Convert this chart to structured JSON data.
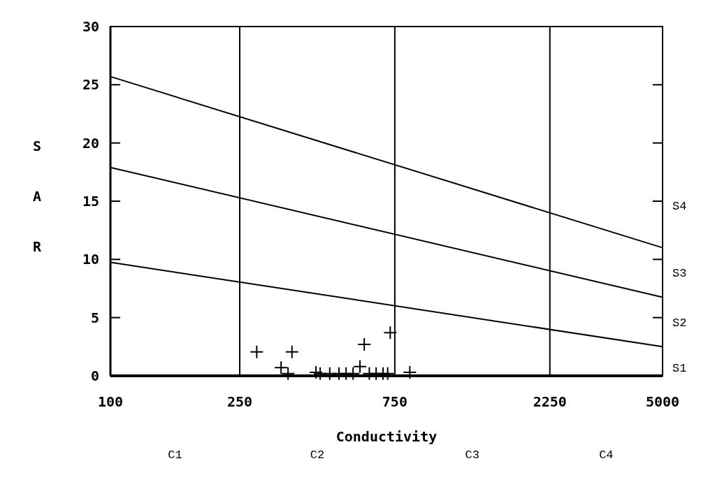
{
  "chart_data": {
    "type": "scatter",
    "xlabel": "Conductivity",
    "ylabel": "SAR",
    "log": "x",
    "xlim": [
      100,
      5000
    ],
    "xticks": [
      100,
      250,
      750,
      2250,
      5000
    ],
    "ylim": [
      0,
      30
    ],
    "yticks": [
      0,
      5,
      10,
      15,
      20,
      25,
      30
    ],
    "grid": false,
    "series": [
      {
        "type": "scatter",
        "marker": "cross",
        "color": "#000000",
        "x": [
          282,
          362,
          604,
          726,
          335,
          834,
          586,
          352,
          442,
          473,
          505,
          531,
          558,
          626,
          657,
          690,
          713,
          429
        ],
        "values": [
          2.05,
          2.05,
          2.7,
          3.7,
          0.7,
          0.3,
          0.8,
          0.2,
          0.2,
          0.2,
          0.2,
          0.2,
          0.2,
          0.2,
          0.2,
          0.2,
          0.2,
          0.3
        ]
      },
      {
        "type": "line",
        "marker": "none",
        "color": "#000000",
        "x": [
          100,
          5000
        ],
        "values": [
          25.7,
          11.0
        ]
      },
      {
        "type": "line",
        "marker": "none",
        "color": "#000000",
        "x": [
          100,
          5000
        ],
        "values": [
          17.9,
          6.75
        ]
      },
      {
        "type": "line",
        "marker": "none",
        "color": "#000000",
        "x": [
          100,
          5000
        ],
        "values": [
          9.75,
          2.5
        ]
      }
    ],
    "ref_lines": [
      {
        "axis": "x",
        "value": 250
      },
      {
        "axis": "x",
        "value": 750
      },
      {
        "axis": "x",
        "value": 2250
      }
    ],
    "annotations": [
      "C1",
      "C2",
      "C3",
      "C4",
      "S1",
      "S2",
      "S3",
      "S4"
    ]
  }
}
